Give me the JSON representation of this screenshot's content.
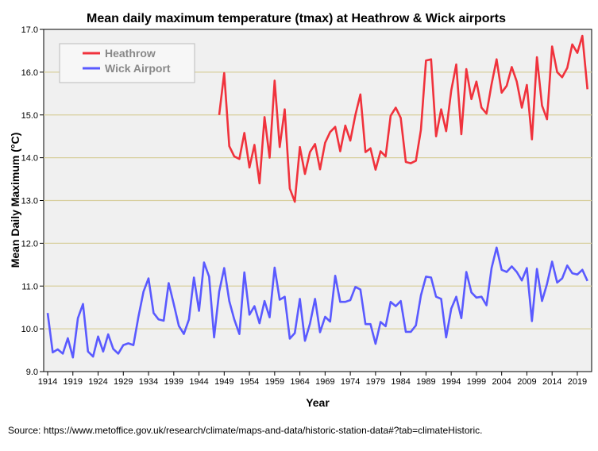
{
  "chart_data": {
    "type": "line",
    "title": "Mean daily maximum temperature (tmax) at Heathrow & Wick airports",
    "xlabel": "Year",
    "ylabel": "Mean Daily Maximum (°C)",
    "ylim": [
      9.0,
      17.0
    ],
    "xlim": [
      1913,
      2022
    ],
    "yticks": [
      "9.0",
      "10.0",
      "11.0",
      "12.0",
      "13.0",
      "14.0",
      "15.0",
      "16.0",
      "17.0"
    ],
    "xticks": [
      "1914",
      "1919",
      "1924",
      "1929",
      "1934",
      "1939",
      "1944",
      "1949",
      "1954",
      "1959",
      "1964",
      "1969",
      "1974",
      "1979",
      "1984",
      "1989",
      "1994",
      "1999",
      "2004",
      "2009",
      "2014",
      "2019"
    ],
    "grid": "horizontal",
    "legend_position": "top-left",
    "series": [
      {
        "name": "Heathrow",
        "color": "#f0323c",
        "start_year": 1948,
        "values": [
          15.0,
          15.98,
          14.27,
          14.03,
          13.97,
          14.58,
          13.77,
          14.3,
          13.4,
          14.95,
          14.0,
          15.8,
          14.25,
          15.13,
          13.28,
          12.97,
          14.25,
          13.62,
          14.13,
          14.32,
          13.73,
          14.35,
          14.6,
          14.72,
          14.15,
          14.75,
          14.4,
          15.0,
          15.48,
          14.13,
          14.22,
          13.72,
          14.15,
          14.03,
          14.98,
          15.17,
          14.93,
          13.9,
          13.87,
          13.93,
          14.65,
          16.27,
          16.3,
          14.5,
          15.13,
          14.62,
          15.57,
          16.18,
          14.55,
          16.07,
          15.37,
          15.78,
          15.17,
          15.03,
          15.72,
          16.3,
          15.52,
          15.68,
          16.12,
          15.78,
          15.17,
          15.7,
          14.43,
          16.35,
          15.22,
          14.9,
          16.6,
          16.0,
          15.88,
          16.1,
          16.65,
          16.45,
          16.85,
          15.6
        ]
      },
      {
        "name": "Wick Airport",
        "color": "#5a5aff",
        "start_year": 1914,
        "values": [
          10.37,
          9.45,
          9.52,
          9.42,
          9.78,
          9.33,
          10.25,
          10.58,
          9.47,
          9.35,
          9.82,
          9.47,
          9.87,
          9.53,
          9.42,
          9.62,
          9.66,
          9.62,
          10.28,
          10.87,
          11.18,
          10.37,
          10.22,
          10.19,
          11.07,
          10.58,
          10.07,
          9.88,
          10.22,
          11.2,
          10.42,
          11.55,
          11.22,
          9.8,
          10.87,
          11.42,
          10.65,
          10.22,
          9.88,
          11.32,
          10.33,
          10.53,
          10.13,
          10.65,
          10.27,
          11.43,
          10.68,
          10.75,
          9.77,
          9.9,
          10.7,
          9.72,
          10.12,
          10.7,
          9.92,
          10.28,
          10.17,
          11.24,
          10.63,
          10.63,
          10.67,
          10.98,
          10.92,
          10.11,
          10.11,
          9.65,
          10.16,
          10.06,
          10.63,
          10.53,
          10.65,
          9.93,
          9.93,
          10.08,
          10.78,
          11.22,
          11.2,
          10.75,
          10.7,
          9.8,
          10.47,
          10.75,
          10.25,
          11.33,
          10.85,
          10.73,
          10.75,
          10.55,
          11.42,
          11.9,
          11.38,
          11.33,
          11.46,
          11.33,
          11.13,
          11.42,
          10.18,
          11.4,
          10.65,
          11.05,
          11.57,
          11.08,
          11.18,
          11.48,
          11.3,
          11.27,
          11.38,
          11.12
        ]
      }
    ],
    "source": "Source: https://www.metoffice.gov.uk/research/climate/maps-and-data/historic-station-data#?tab=climateHistoric."
  }
}
